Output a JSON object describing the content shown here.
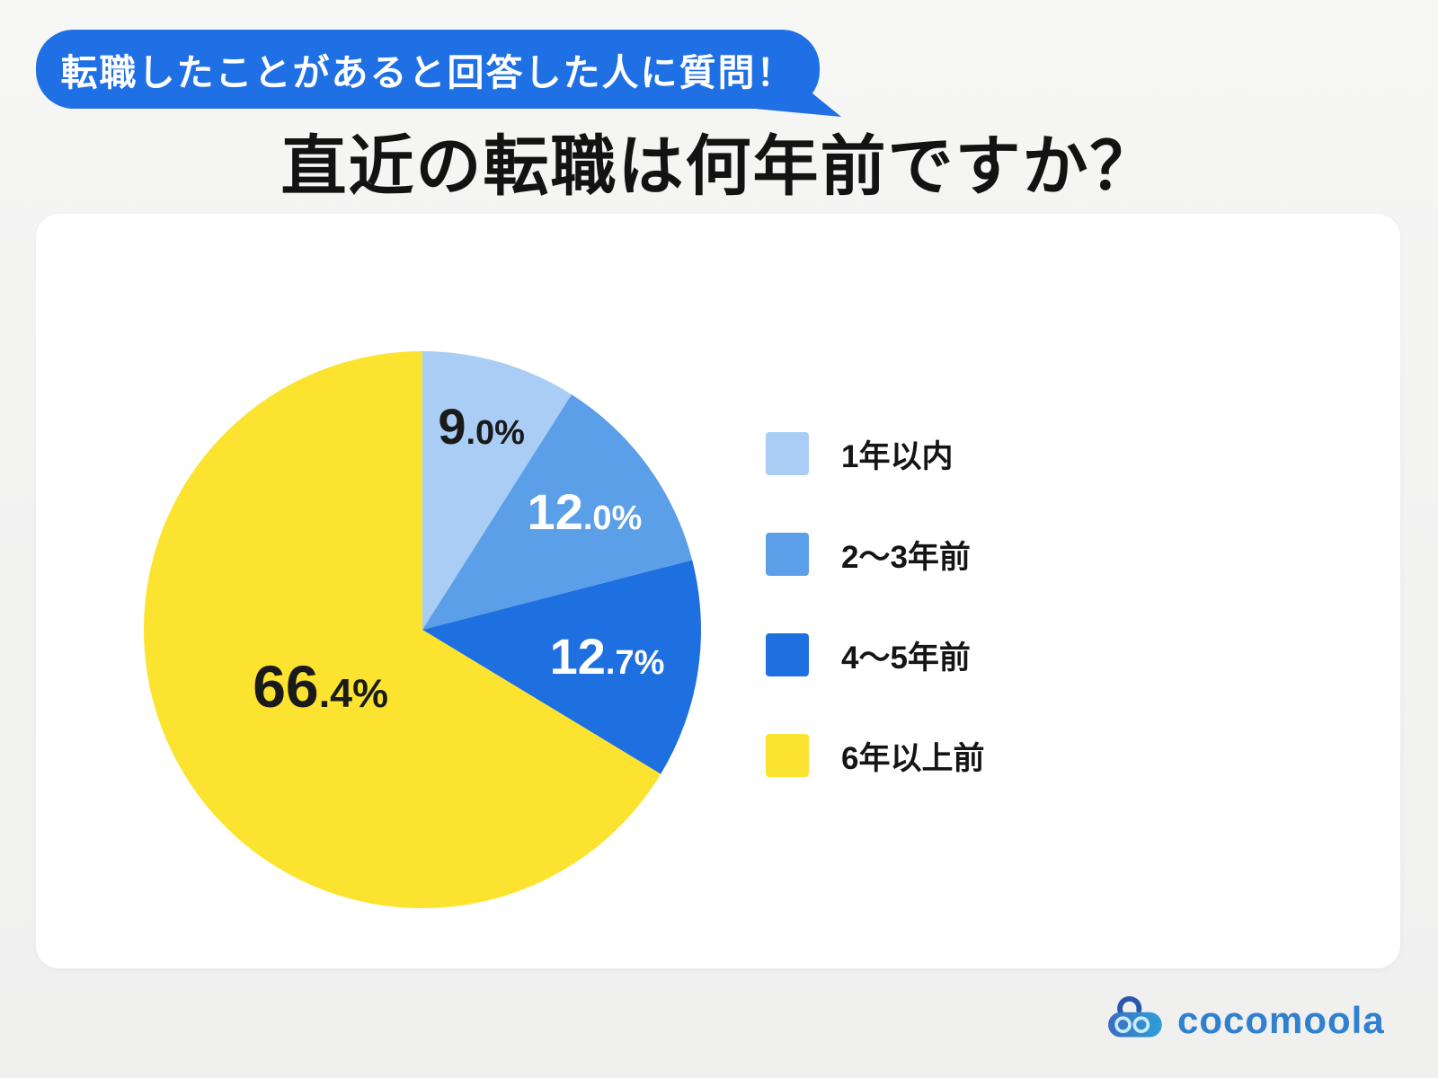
{
  "banner": {
    "label": "転職したことがあると回答した人に質問！"
  },
  "title": "直近の転職は何年前ですか？",
  "brand": {
    "name": "cocomoola"
  },
  "colors": {
    "banner_blue": "#1f70e4",
    "background": "#f2f2f1",
    "card": "#ffffff",
    "title_text": "#131313",
    "legend_text": "#151515",
    "logo_blue": "#2f80cf"
  },
  "chart_data": {
    "type": "pie",
    "title": "直近の転職は何年前ですか？",
    "categories": [
      "1年以内",
      "2〜3年前",
      "4〜5年前",
      "6年以上前"
    ],
    "values": [
      9.0,
      12.0,
      12.7,
      66.4
    ],
    "value_labels": [
      "9.0%",
      "12.0%",
      "12.7%",
      "66.4%"
    ],
    "colors": [
      "#a9cdf4",
      "#5b9fe8",
      "#1e6fe0",
      "#fce32f"
    ],
    "label_colors": [
      "#1a1a1a",
      "#ffffff",
      "#ffffff",
      "#1a1a1a"
    ],
    "start_angle_deg": 0,
    "direction": "clockwise",
    "legend_position": "right",
    "grid": false,
    "label_radius_frac": [
      0.76,
      0.72,
      0.67,
      0.42
    ],
    "label_scale": [
      1.0,
      1.0,
      1.0,
      1.18
    ]
  }
}
